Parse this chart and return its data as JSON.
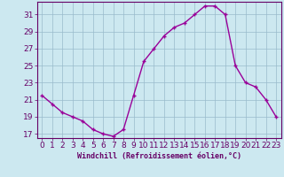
{
  "x": [
    0,
    1,
    2,
    3,
    4,
    5,
    6,
    7,
    8,
    9,
    10,
    11,
    12,
    13,
    14,
    15,
    16,
    17,
    18,
    19,
    20,
    21,
    22,
    23
  ],
  "y": [
    21.5,
    20.5,
    19.5,
    19.0,
    18.5,
    17.5,
    17.0,
    16.7,
    17.5,
    21.5,
    25.5,
    27.0,
    28.5,
    29.5,
    30.0,
    31.0,
    32.0,
    32.0,
    31.0,
    25.0,
    23.0,
    22.5,
    21.0,
    19.0
  ],
  "line_color": "#990099",
  "marker": "+",
  "marker_size": 3,
  "linewidth": 1.0,
  "xlabel": "Windchill (Refroidissement éolien,°C)",
  "xlabel_fontsize": 6,
  "background_color": "#cce8f0",
  "grid_color": "#99bbcc",
  "tick_color": "#660066",
  "spine_color": "#660066",
  "ylim": [
    16.5,
    32.5
  ],
  "xlim": [
    -0.5,
    23.5
  ],
  "yticks": [
    17,
    19,
    21,
    23,
    25,
    27,
    29,
    31
  ],
  "xticks": [
    0,
    1,
    2,
    3,
    4,
    5,
    6,
    7,
    8,
    9,
    10,
    11,
    12,
    13,
    14,
    15,
    16,
    17,
    18,
    19,
    20,
    21,
    22,
    23
  ],
  "tick_fontsize": 6.5
}
